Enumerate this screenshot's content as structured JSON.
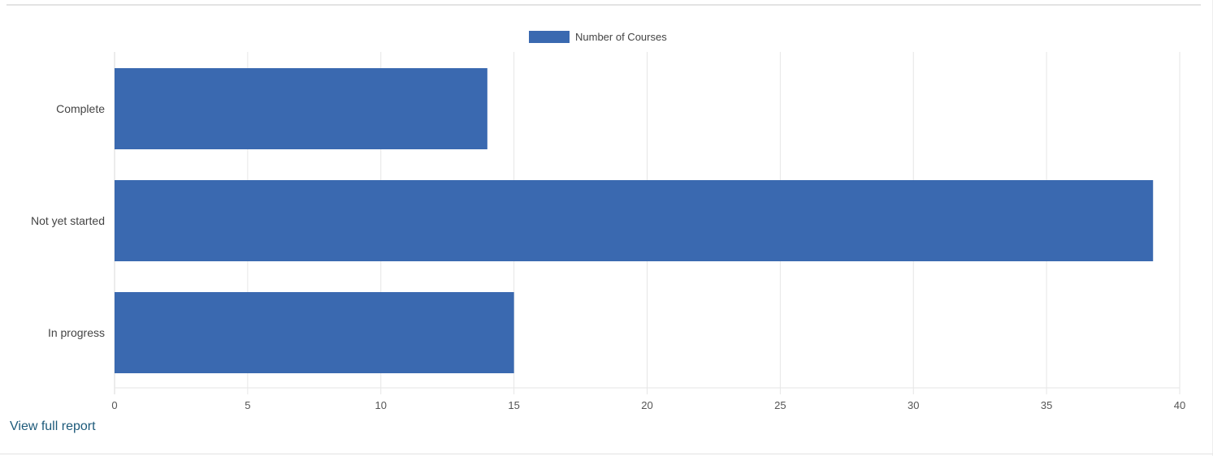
{
  "chart_data": {
    "type": "bar",
    "orientation": "horizontal",
    "categories": [
      "Complete",
      "Not yet started",
      "In progress"
    ],
    "series": [
      {
        "name": "Number of Courses",
        "values": [
          14,
          39,
          15
        ],
        "color": "#3a69b0"
      }
    ],
    "title": "",
    "xlabel": "",
    "ylabel": "",
    "xlim": [
      0,
      40
    ],
    "x_ticks": [
      0,
      5,
      10,
      15,
      20,
      25,
      30,
      35,
      40
    ],
    "grid": true,
    "legend_position": "top-center"
  },
  "footer": {
    "report_link_label": "View full report"
  },
  "colors": {
    "bar": "#3a69b0",
    "grid": "#e6e6e6",
    "axis": "#d9d9d9",
    "tick_text": "#555555",
    "category_text": "#444444",
    "link": "#1d5a7a"
  }
}
